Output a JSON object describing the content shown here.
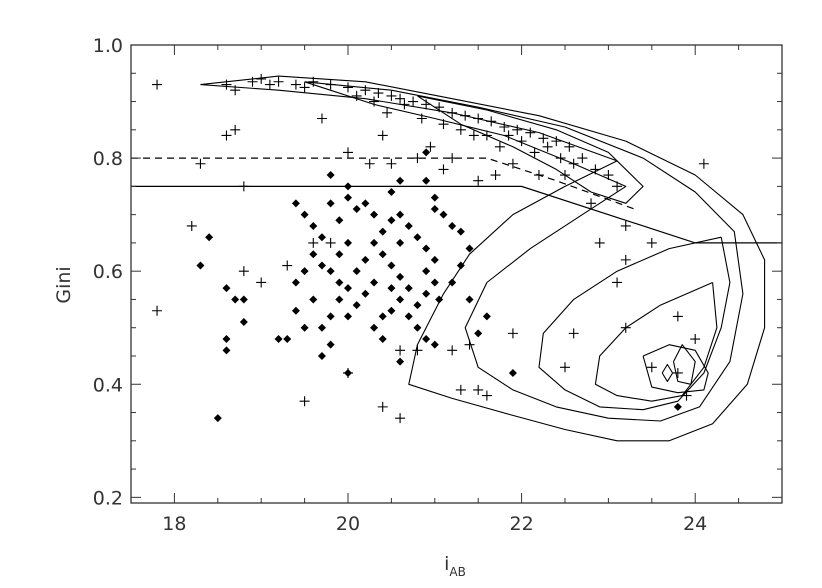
{
  "chart_data": {
    "type": "scatter",
    "xlabel": "i",
    "xlabel_sub": "AB",
    "ylabel": "Gini",
    "xlim": [
      17.5,
      25.0
    ],
    "ylim": [
      0.19,
      1.0
    ],
    "x_ticks": [
      18,
      20,
      22,
      24
    ],
    "x_tick_labels": [
      "18",
      "20",
      "22",
      "24"
    ],
    "y_ticks": [
      0.2,
      0.4,
      0.6,
      0.8,
      1.0
    ],
    "y_tick_labels": [
      "0.2",
      "0.4",
      "0.6",
      "0.8",
      "1.0"
    ],
    "grid": false,
    "legend": "none",
    "colors": {
      "ink": "#000000",
      "axis": "#333333"
    },
    "reference_lines": [
      {
        "style": "dashed",
        "points": [
          [
            17.5,
            0.8
          ],
          [
            21.6,
            0.8
          ],
          [
            22.4,
            0.76
          ],
          [
            23.3,
            0.71
          ]
        ]
      },
      {
        "style": "solid",
        "points": [
          [
            17.5,
            0.75
          ],
          [
            22.0,
            0.75
          ],
          [
            23.2,
            0.69
          ],
          [
            24.0,
            0.65
          ],
          [
            25.0,
            0.65
          ]
        ]
      }
    ],
    "contours": [
      [
        [
          18.3,
          0.93
        ],
        [
          19.2,
          0.945
        ],
        [
          20.2,
          0.935
        ],
        [
          21.2,
          0.905
        ],
        [
          22.2,
          0.875
        ],
        [
          23.2,
          0.83
        ],
        [
          24.0,
          0.77
        ],
        [
          24.55,
          0.7
        ],
        [
          24.8,
          0.62
        ],
        [
          24.8,
          0.5
        ],
        [
          24.6,
          0.4
        ],
        [
          24.2,
          0.33
        ],
        [
          23.7,
          0.3
        ],
        [
          23.1,
          0.3
        ],
        [
          22.5,
          0.32
        ],
        [
          21.9,
          0.345
        ],
        [
          21.2,
          0.375
        ],
        [
          20.7,
          0.4
        ],
        [
          20.8,
          0.47
        ],
        [
          21.1,
          0.56
        ],
        [
          21.4,
          0.63
        ],
        [
          21.9,
          0.7
        ],
        [
          22.5,
          0.75
        ],
        [
          23.1,
          0.795
        ],
        [
          22.2,
          0.845
        ],
        [
          21.2,
          0.88
        ],
        [
          20.2,
          0.905
        ],
        [
          19.2,
          0.92
        ],
        [
          18.3,
          0.93
        ]
      ],
      [
        [
          19.5,
          0.935
        ],
        [
          20.5,
          0.92
        ],
        [
          21.5,
          0.89
        ],
        [
          22.5,
          0.855
        ],
        [
          23.4,
          0.8
        ],
        [
          24.0,
          0.74
        ],
        [
          24.45,
          0.67
        ],
        [
          24.55,
          0.56
        ],
        [
          24.4,
          0.44
        ],
        [
          24.05,
          0.36
        ],
        [
          23.6,
          0.335
        ],
        [
          23.0,
          0.34
        ],
        [
          22.4,
          0.36
        ],
        [
          21.9,
          0.39
        ],
        [
          21.5,
          0.43
        ],
        [
          21.35,
          0.5
        ],
        [
          21.6,
          0.58
        ],
        [
          22.1,
          0.64
        ],
        [
          22.7,
          0.7
        ],
        [
          23.2,
          0.75
        ],
        [
          22.6,
          0.79
        ],
        [
          21.8,
          0.84
        ],
        [
          21.0,
          0.87
        ],
        [
          20.3,
          0.895
        ],
        [
          19.5,
          0.935
        ]
      ],
      [
        [
          20.8,
          0.91
        ],
        [
          21.6,
          0.885
        ],
        [
          22.4,
          0.85
        ],
        [
          23.0,
          0.81
        ],
        [
          23.4,
          0.75
        ],
        [
          23.2,
          0.72
        ],
        [
          22.8,
          0.74
        ],
        [
          22.4,
          0.78
        ],
        [
          21.9,
          0.82
        ],
        [
          21.3,
          0.86
        ],
        [
          20.8,
          0.91
        ]
      ],
      [
        [
          24.3,
          0.66
        ],
        [
          24.4,
          0.58
        ],
        [
          24.3,
          0.5
        ],
        [
          24.1,
          0.42
        ],
        [
          23.8,
          0.37
        ],
        [
          23.4,
          0.355
        ],
        [
          22.9,
          0.36
        ],
        [
          22.5,
          0.39
        ],
        [
          22.2,
          0.43
        ],
        [
          22.25,
          0.49
        ],
        [
          22.6,
          0.55
        ],
        [
          23.1,
          0.6
        ],
        [
          23.7,
          0.64
        ],
        [
          24.3,
          0.66
        ]
      ],
      [
        [
          24.2,
          0.58
        ],
        [
          24.25,
          0.5
        ],
        [
          24.1,
          0.43
        ],
        [
          23.85,
          0.38
        ],
        [
          23.5,
          0.37
        ],
        [
          23.1,
          0.38
        ],
        [
          22.85,
          0.4
        ],
        [
          22.9,
          0.45
        ],
        [
          23.2,
          0.5
        ],
        [
          23.6,
          0.54
        ],
        [
          24.2,
          0.58
        ]
      ],
      [
        [
          23.4,
          0.45
        ],
        [
          23.7,
          0.47
        ],
        [
          24.0,
          0.46
        ],
        [
          24.15,
          0.42
        ],
        [
          24.1,
          0.39
        ],
        [
          23.8,
          0.385
        ],
        [
          23.5,
          0.395
        ],
        [
          23.4,
          0.45
        ]
      ],
      [
        [
          23.75,
          0.44
        ],
        [
          23.85,
          0.47
        ],
        [
          24.0,
          0.44
        ],
        [
          23.95,
          0.4
        ],
        [
          23.8,
          0.405
        ],
        [
          23.75,
          0.44
        ]
      ],
      [
        [
          23.62,
          0.42
        ],
        [
          23.68,
          0.435
        ],
        [
          23.74,
          0.42
        ],
        [
          23.68,
          0.405
        ],
        [
          23.62,
          0.42
        ]
      ]
    ],
    "series": [
      {
        "marker": "plus",
        "points": [
          [
            17.8,
            0.93
          ],
          [
            18.9,
            0.935
          ],
          [
            19.0,
            0.94
          ],
          [
            19.2,
            0.935
          ],
          [
            19.4,
            0.93
          ],
          [
            19.6,
            0.935
          ],
          [
            19.8,
            0.93
          ],
          [
            20.0,
            0.925
          ],
          [
            20.2,
            0.92
          ],
          [
            20.35,
            0.915
          ],
          [
            20.5,
            0.91
          ],
          [
            20.6,
            0.905
          ],
          [
            20.75,
            0.9
          ],
          [
            20.9,
            0.895
          ],
          [
            21.05,
            0.89
          ],
          [
            21.2,
            0.88
          ],
          [
            21.35,
            0.875
          ],
          [
            21.5,
            0.87
          ],
          [
            21.65,
            0.865
          ],
          [
            21.8,
            0.855
          ],
          [
            21.95,
            0.85
          ],
          [
            22.1,
            0.845
          ],
          [
            22.25,
            0.835
          ],
          [
            22.4,
            0.83
          ],
          [
            22.55,
            0.82
          ],
          [
            18.6,
            0.93
          ],
          [
            18.7,
            0.92
          ],
          [
            19.1,
            0.93
          ],
          [
            19.5,
            0.925
          ],
          [
            20.1,
            0.91
          ],
          [
            20.3,
            0.9
          ],
          [
            20.45,
            0.88
          ],
          [
            20.65,
            0.895
          ],
          [
            20.85,
            0.87
          ],
          [
            21.1,
            0.86
          ],
          [
            21.3,
            0.85
          ],
          [
            21.45,
            0.84
          ],
          [
            21.6,
            0.84
          ],
          [
            21.75,
            0.82
          ],
          [
            21.85,
            0.84
          ],
          [
            22.0,
            0.83
          ],
          [
            22.15,
            0.81
          ],
          [
            22.3,
            0.82
          ],
          [
            22.45,
            0.8
          ],
          [
            22.6,
            0.79
          ],
          [
            22.7,
            0.8
          ],
          [
            22.85,
            0.78
          ],
          [
            23.0,
            0.77
          ],
          [
            23.1,
            0.75
          ],
          [
            22.2,
            0.77
          ],
          [
            22.5,
            0.77
          ],
          [
            21.2,
            0.8
          ],
          [
            20.5,
            0.79
          ],
          [
            20.95,
            0.82
          ],
          [
            18.6,
            0.84
          ],
          [
            18.7,
            0.85
          ],
          [
            18.3,
            0.79
          ],
          [
            18.8,
            0.75
          ],
          [
            19.7,
            0.87
          ],
          [
            20.0,
            0.81
          ],
          [
            20.25,
            0.79
          ],
          [
            20.4,
            0.84
          ],
          [
            20.8,
            0.8
          ],
          [
            21.1,
            0.78
          ],
          [
            21.5,
            0.76
          ],
          [
            21.7,
            0.77
          ],
          [
            21.9,
            0.79
          ],
          [
            22.8,
            0.72
          ],
          [
            23.2,
            0.68
          ],
          [
            22.9,
            0.65
          ],
          [
            23.5,
            0.65
          ],
          [
            23.2,
            0.62
          ],
          [
            23.1,
            0.58
          ],
          [
            24.1,
            0.79
          ],
          [
            18.2,
            0.68
          ],
          [
            18.8,
            0.6
          ],
          [
            19.0,
            0.58
          ],
          [
            17.8,
            0.53
          ],
          [
            19.3,
            0.61
          ],
          [
            19.6,
            0.65
          ],
          [
            19.8,
            0.65
          ],
          [
            20.6,
            0.46
          ],
          [
            20.8,
            0.46
          ],
          [
            21.2,
            0.46
          ],
          [
            21.4,
            0.47
          ],
          [
            21.9,
            0.49
          ],
          [
            22.6,
            0.49
          ],
          [
            23.2,
            0.5
          ],
          [
            23.8,
            0.52
          ],
          [
            24.0,
            0.48
          ],
          [
            23.5,
            0.43
          ],
          [
            23.9,
            0.38
          ],
          [
            23.8,
            0.42
          ],
          [
            19.5,
            0.37
          ],
          [
            20.0,
            0.42
          ],
          [
            20.4,
            0.36
          ],
          [
            20.6,
            0.34
          ],
          [
            21.5,
            0.39
          ],
          [
            21.3,
            0.39
          ],
          [
            21.6,
            0.38
          ],
          [
            22.5,
            0.43
          ]
        ]
      },
      {
        "marker": "diamond",
        "points": [
          [
            18.4,
            0.66
          ],
          [
            18.3,
            0.61
          ],
          [
            18.6,
            0.57
          ],
          [
            18.7,
            0.55
          ],
          [
            18.8,
            0.55
          ],
          [
            18.8,
            0.51
          ],
          [
            18.6,
            0.48
          ],
          [
            18.6,
            0.46
          ],
          [
            18.5,
            0.34
          ],
          [
            19.4,
            0.72
          ],
          [
            19.5,
            0.7
          ],
          [
            19.6,
            0.68
          ],
          [
            19.7,
            0.66
          ],
          [
            19.8,
            0.72
          ],
          [
            20.0,
            0.75
          ],
          [
            20.0,
            0.73
          ],
          [
            20.1,
            0.71
          ],
          [
            19.9,
            0.69
          ],
          [
            19.6,
            0.63
          ],
          [
            19.7,
            0.61
          ],
          [
            19.5,
            0.6
          ],
          [
            19.4,
            0.58
          ],
          [
            19.8,
            0.6
          ],
          [
            19.9,
            0.58
          ],
          [
            20.0,
            0.57
          ],
          [
            19.9,
            0.55
          ],
          [
            19.8,
            0.52
          ],
          [
            19.7,
            0.5
          ],
          [
            19.5,
            0.5
          ],
          [
            19.3,
            0.48
          ],
          [
            19.2,
            0.48
          ],
          [
            19.4,
            0.53
          ],
          [
            19.6,
            0.55
          ],
          [
            20.0,
            0.52
          ],
          [
            20.1,
            0.54
          ],
          [
            20.2,
            0.56
          ],
          [
            20.3,
            0.5
          ],
          [
            20.4,
            0.52
          ],
          [
            20.5,
            0.53
          ],
          [
            20.6,
            0.55
          ],
          [
            20.7,
            0.57
          ],
          [
            20.6,
            0.59
          ],
          [
            20.5,
            0.61
          ],
          [
            20.4,
            0.63
          ],
          [
            20.3,
            0.65
          ],
          [
            20.4,
            0.67
          ],
          [
            20.5,
            0.69
          ],
          [
            20.6,
            0.7
          ],
          [
            20.7,
            0.68
          ],
          [
            20.8,
            0.66
          ],
          [
            20.9,
            0.64
          ],
          [
            21.0,
            0.62
          ],
          [
            20.9,
            0.6
          ],
          [
            21.0,
            0.58
          ],
          [
            20.9,
            0.56
          ],
          [
            20.8,
            0.54
          ],
          [
            20.7,
            0.52
          ],
          [
            20.8,
            0.5
          ],
          [
            20.9,
            0.48
          ],
          [
            21.0,
            0.47
          ],
          [
            20.6,
            0.65
          ],
          [
            20.3,
            0.7
          ],
          [
            20.2,
            0.72
          ],
          [
            20.5,
            0.74
          ],
          [
            20.6,
            0.76
          ],
          [
            20.9,
            0.76
          ],
          [
            21.0,
            0.73
          ],
          [
            21.1,
            0.7
          ],
          [
            21.2,
            0.68
          ],
          [
            21.3,
            0.67
          ],
          [
            21.4,
            0.64
          ],
          [
            21.3,
            0.61
          ],
          [
            21.2,
            0.58
          ],
          [
            21.4,
            0.55
          ],
          [
            21.6,
            0.52
          ],
          [
            21.5,
            0.49
          ],
          [
            21.9,
            0.42
          ],
          [
            20.6,
            0.44
          ],
          [
            20.4,
            0.48
          ],
          [
            20.0,
            0.42
          ],
          [
            19.8,
            0.47
          ],
          [
            19.7,
            0.45
          ],
          [
            23.8,
            0.36
          ],
          [
            20.2,
            0.62
          ],
          [
            20.1,
            0.6
          ],
          [
            19.9,
            0.63
          ],
          [
            20.0,
            0.65
          ],
          [
            20.3,
            0.58
          ],
          [
            20.5,
            0.57
          ],
          [
            19.8,
            0.77
          ],
          [
            20.9,
            0.81
          ],
          [
            21.0,
            0.71
          ],
          [
            21.05,
            0.55
          ]
        ]
      }
    ]
  }
}
